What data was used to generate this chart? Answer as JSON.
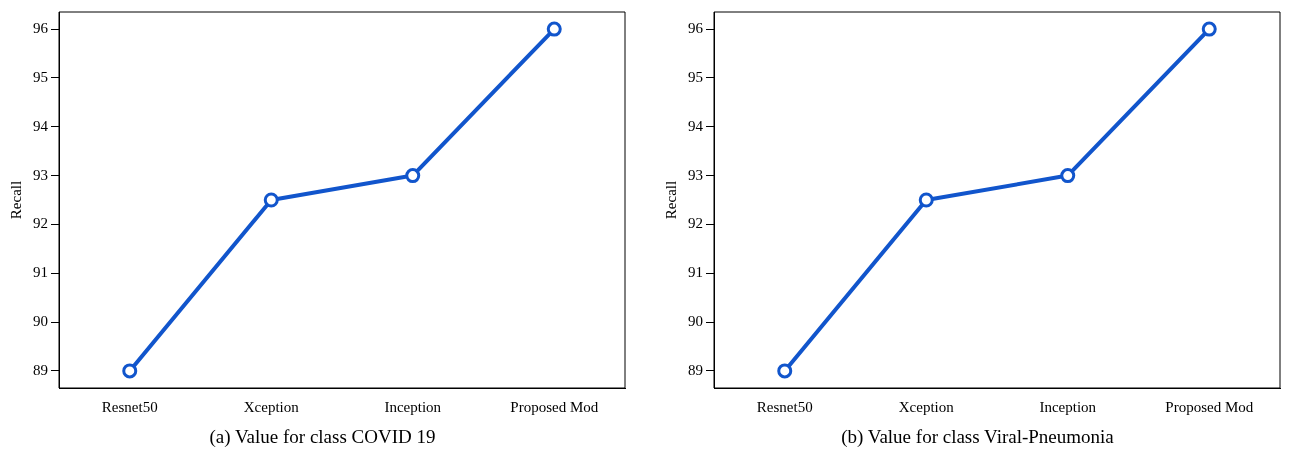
{
  "chart_data": [
    {
      "type": "line",
      "ylabel": "Recall",
      "categories": [
        "Resnet50",
        "Xception",
        "Inception",
        "Proposed Mod"
      ],
      "series": [
        {
          "color": "#1155cc",
          "values": [
            89,
            92.5,
            93,
            96
          ]
        }
      ],
      "ylim": [
        88.65,
        96.35
      ],
      "yticks": [
        89,
        90,
        91,
        92,
        93,
        94,
        95,
        96
      ],
      "marker": "circle",
      "annotations": [
        "(a) Value for class COVID 19"
      ]
    },
    {
      "type": "line",
      "ylabel": "Recall",
      "categories": [
        "Resnet50",
        "Xception",
        "Inception",
        "Proposed Mod"
      ],
      "series": [
        {
          "color": "#1155cc",
          "values": [
            89,
            92.5,
            93,
            96
          ]
        }
      ],
      "ylim": [
        88.65,
        96.35
      ],
      "yticks": [
        89,
        90,
        91,
        92,
        93,
        94,
        95,
        96
      ],
      "marker": "circle",
      "annotations": [
        "(b) Value for class Viral-Pneumonia"
      ]
    }
  ]
}
